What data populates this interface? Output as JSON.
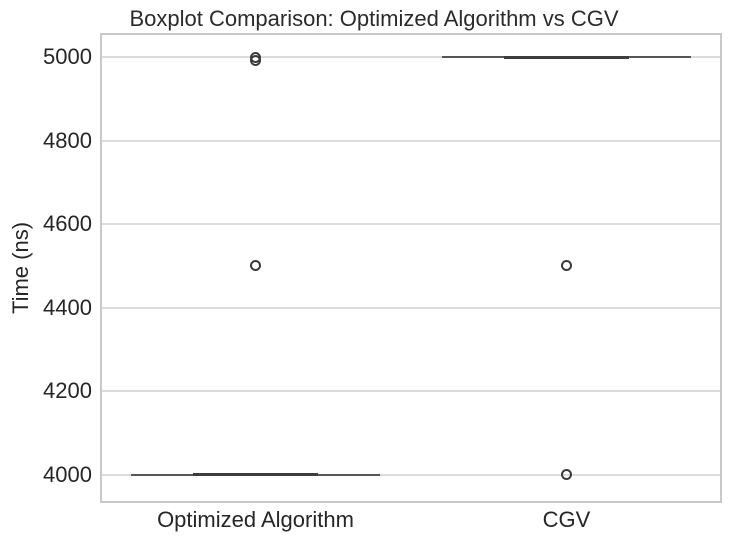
{
  "chart_data": {
    "type": "boxplot",
    "title": "Boxplot Comparison: Optimized Algorithm vs CGV",
    "xlabel": "",
    "ylabel": "Time (ns)",
    "categories": [
      "Optimized Algorithm",
      "CGV"
    ],
    "yticks": [
      4000,
      4200,
      4400,
      4600,
      4800,
      5000
    ],
    "ylim": [
      3932,
      5058
    ],
    "grid": "horizontal-only",
    "legend": "none",
    "series": [
      {
        "name": "Optimized Algorithm",
        "whislo": 4000,
        "q1": 4000,
        "median": 4000,
        "q3": 4000,
        "whishi": 4000,
        "fliers": [
          4500,
          4992,
          5000
        ]
      },
      {
        "name": "CGV",
        "whislo": 5000,
        "q1": 5000,
        "median": 5000,
        "q3": 5000,
        "whishi": 5000,
        "fliers": [
          4000,
          4500
        ]
      }
    ],
    "colors": {
      "background": "#ffffff",
      "box_line": "#565656",
      "cap_line": "#3d3d3d",
      "flier_edge": "#3a3a3a",
      "grid": "#dcdcdc",
      "spine": "#c9c9c9",
      "text": "#262626"
    }
  }
}
